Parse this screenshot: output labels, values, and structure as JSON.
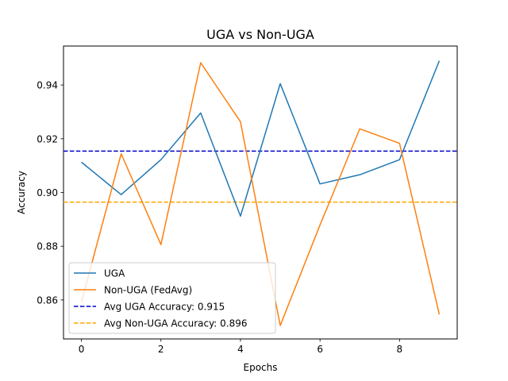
{
  "chart_data": {
    "type": "line",
    "title": "UGA vs Non-UGA",
    "xlabel": "Epochs",
    "ylabel": "Accuracy",
    "x": [
      0,
      1,
      2,
      3,
      4,
      5,
      6,
      7,
      8,
      9
    ],
    "xlim": [
      -0.45,
      9.45
    ],
    "ylim": [
      0.8455,
      0.9545
    ],
    "x_ticks": [
      0,
      2,
      4,
      6,
      8
    ],
    "y_ticks": [
      0.86,
      0.88,
      0.9,
      0.92,
      0.94
    ],
    "y_tick_labels": [
      "0.86",
      "0.88",
      "0.90",
      "0.92",
      "0.94"
    ],
    "grid": false,
    "legend_position": "lower-left",
    "series": [
      {
        "name": "UGA",
        "color": "#1f77b4",
        "style": "solid",
        "values": [
          0.9113,
          0.8992,
          0.9122,
          0.9296,
          0.8912,
          0.9405,
          0.9032,
          0.9066,
          0.9122,
          0.949
        ]
      },
      {
        "name": "Non-UGA (FedAvg)",
        "color": "#ff7f0e",
        "style": "solid",
        "values": [
          0.8592,
          0.9144,
          0.8806,
          0.9483,
          0.9263,
          0.8505,
          0.8879,
          0.9237,
          0.9183,
          0.8546
        ]
      }
    ],
    "reference_lines": [
      {
        "name": "Avg UGA Accuracy: 0.915",
        "value": 0.9154,
        "color": "#0000cc",
        "style": "dashed"
      },
      {
        "name": "Avg Non-UGA Accuracy: 0.896",
        "value": 0.8964,
        "color": "#ffa500",
        "style": "dashed"
      }
    ]
  }
}
